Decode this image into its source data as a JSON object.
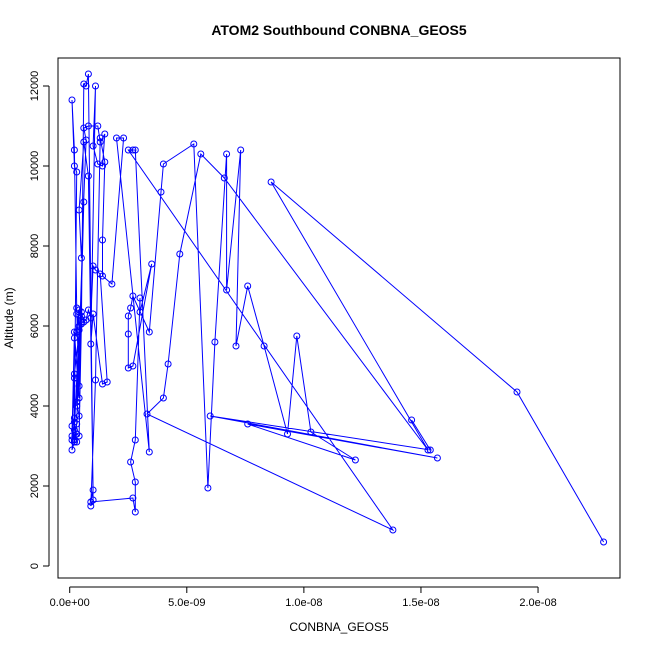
{
  "colors": {
    "series": "#0000ff",
    "axis": "#000000",
    "background": "#ffffff"
  },
  "chart_data": {
    "type": "line",
    "title": "ATOM2 Southbound CONBNA_GEOS5",
    "xlabel": "CONBNA_GEOS5",
    "ylabel": "Altitude (m)",
    "xlim": [
      -5e-10,
      2.35e-08
    ],
    "ylim": [
      -300,
      12700
    ],
    "x_ticks": [
      {
        "value": 0,
        "label": "0.0e+00"
      },
      {
        "value": 5e-09,
        "label": "5.0e-09"
      },
      {
        "value": 1e-08,
        "label": "1.0e-08"
      },
      {
        "value": 1.5e-08,
        "label": "1.5e-08"
      },
      {
        "value": 2e-08,
        "label": "2.0e-08"
      }
    ],
    "y_ticks": [
      {
        "value": 0,
        "label": "0"
      },
      {
        "value": 2000,
        "label": "2000"
      },
      {
        "value": 4000,
        "label": "4000"
      },
      {
        "value": 6000,
        "label": "6000"
      },
      {
        "value": 8000,
        "label": "8000"
      },
      {
        "value": 10000,
        "label": "10000"
      },
      {
        "value": 12000,
        "label": "12000"
      }
    ],
    "grid": false,
    "legend": "none",
    "markers": "open-circle",
    "series": [
      {
        "color": "#0000ff",
        "x": [
          2.28e-08,
          1.91e-08,
          8.6e-09,
          1.53e-08,
          6.6e-09,
          5.6e-09,
          4.7e-09,
          4.2e-09,
          4e-09,
          3.3e-09,
          1.38e-08,
          2.5e-09,
          2.7e-09,
          2.8e-09,
          3.4e-09,
          2e-09,
          2.3e-09,
          1.8e-09,
          1.4e-09,
          1.4e-09,
          1.5e-09,
          1.3e-09,
          1.1e-09,
          9e-10,
          1e-09,
          8e-10,
          7e-10,
          6e-10,
          5e-10,
          4e-10,
          3e-10,
          2e-10,
          1e-10,
          5e-10,
          3e-10,
          4e-10,
          6e-10,
          3e-10,
          2e-10,
          3e-10,
          2e-10,
          4e-10,
          3e-10,
          5e-10,
          4e-10,
          3e-10,
          2e-10,
          1e-10,
          2e-10,
          3e-10,
          4e-10,
          5e-10,
          3e-10,
          4e-10,
          2e-10,
          3e-10,
          2e-10,
          1e-10,
          2e-10,
          3e-10,
          2e-10,
          1e-10,
          2e-10,
          3e-10,
          4e-10,
          2e-10,
          1e-10,
          2e-10,
          5e-10,
          6e-10,
          7e-10,
          8e-10,
          9e-10,
          1e-09,
          1.1e-09,
          1.3e-09,
          1.6e-09,
          1.4e-09,
          1e-09,
          9e-10,
          1.1e-09,
          1e-09,
          1.2e-09,
          1.4e-09,
          1.5e-09,
          1.3e-09,
          1.2e-09,
          8e-10,
          6e-10,
          7e-10,
          5e-10,
          4e-10,
          6e-10,
          8e-10,
          1e-09,
          9e-10,
          2.7e-09,
          2.8e-09,
          2.8e-09,
          2.6e-09,
          2.8e-09,
          3e-09,
          3e-09,
          3.5e-09,
          2.7e-09,
          2.5e-09,
          2.5e-09,
          2.5e-09,
          2.6e-09,
          2.7e-09,
          3.4e-09,
          3.9e-09,
          4e-09,
          5.3e-09,
          5.9e-09,
          6.2e-09,
          6.7e-09,
          6.7e-09,
          7.3e-09,
          7.1e-09,
          7.6e-09,
          8.3e-09,
          9.3e-09,
          9.7e-09,
          1.03e-08,
          1.22e-08,
          7.6e-09,
          1.57e-08,
          6e-09,
          1.54e-08,
          1.46e-08
        ],
        "y": [
          600,
          4350,
          9600,
          2900,
          9700,
          10300,
          7800,
          5050,
          4200,
          3800,
          900,
          10400,
          10400,
          10400,
          2850,
          10700,
          10700,
          7050,
          7250,
          8150,
          10100,
          10700,
          4650,
          1500,
          1650,
          12300,
          12000,
          12050,
          6050,
          3250,
          3300,
          3100,
          2900,
          6100,
          4000,
          4500,
          9100,
          3550,
          3150,
          3300,
          3400,
          6000,
          6300,
          6250,
          6400,
          5850,
          5700,
          3150,
          4700,
          4700,
          5900,
          6150,
          4100,
          3750,
          3600,
          3100,
          3100,
          3500,
          3700,
          9850,
          10000,
          11650,
          10400,
          6450,
          4200,
          5850,
          3250,
          4800,
          6350,
          6100,
          6150,
          6400,
          6200,
          7500,
          7400,
          7300,
          4600,
          4550,
          6300,
          5550,
          12000,
          10500,
          10050,
          10000,
          10800,
          10600,
          11000,
          11000,
          10950,
          10650,
          7700,
          8900,
          10600,
          9750,
          1900,
          1600,
          1700,
          1350,
          2100,
          2600,
          3150,
          6700,
          6350,
          7550,
          5000,
          4950,
          5800,
          6250,
          6450,
          6750,
          5850,
          9350,
          10050,
          10550,
          1950,
          5600,
          10300,
          6900,
          10400,
          5500,
          7000,
          5500,
          3300,
          5750,
          3350,
          2650,
          3550,
          2700,
          3750,
          2900,
          3650
        ]
      }
    ]
  }
}
